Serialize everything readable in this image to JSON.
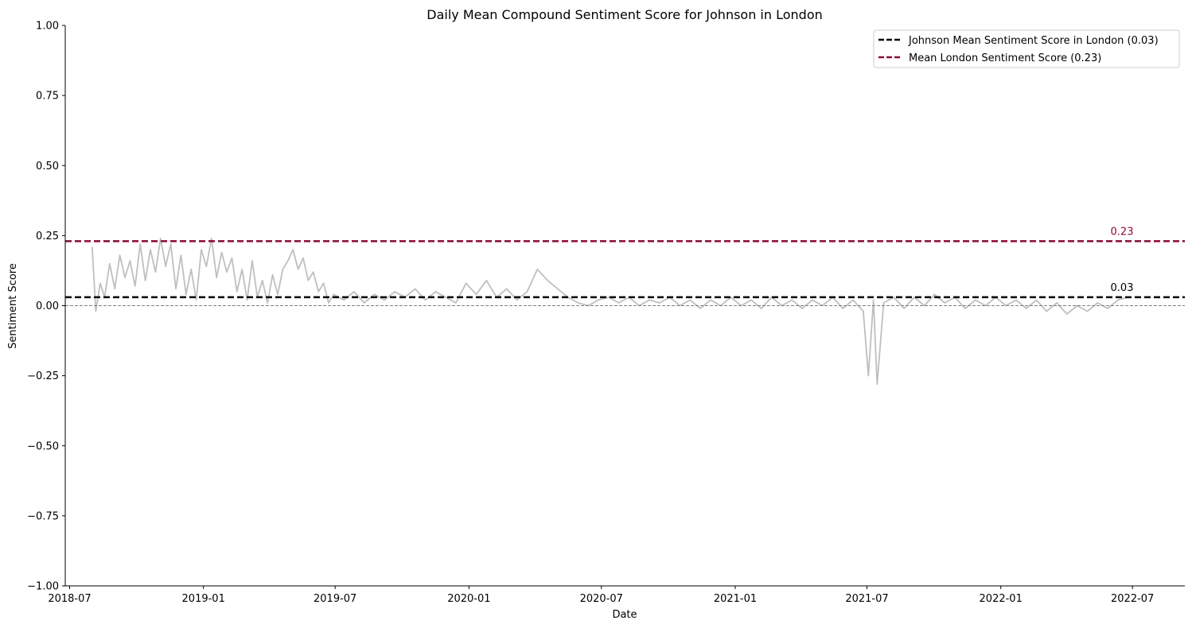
{
  "chart_data": {
    "type": "line",
    "title": "Daily Mean Compound Sentiment Score for Johnson in London",
    "xlabel": "Date",
    "ylabel": "Sentiment Score",
    "xlim": [
      "2018-06-25",
      "2022-09-11"
    ],
    "ylim": [
      -1.0,
      1.0
    ],
    "x_ticks": [
      "2018-07-01",
      "2019-01-01",
      "2019-07-01",
      "2020-01-01",
      "2020-07-01",
      "2021-01-01",
      "2021-07-01",
      "2022-01-01",
      "2022-07-01"
    ],
    "x_tick_labels": [
      "2018-07",
      "2019-01",
      "2019-07",
      "2020-01",
      "2020-07",
      "2021-01",
      "2021-07",
      "2022-01",
      "2022-07"
    ],
    "y_ticks": [
      -1.0,
      -0.75,
      -0.5,
      -0.25,
      0.0,
      0.25,
      0.5,
      0.75,
      1.0
    ],
    "y_tick_labels": [
      "−1.00",
      "−0.75",
      "−0.50",
      "−0.25",
      "0.00",
      "0.25",
      "0.50",
      "0.75",
      "1.00"
    ],
    "grid": false,
    "legend_position": "top-right",
    "series": [
      {
        "color": "#bfbfbf",
        "points": [
          [
            "2018-08-01",
            0.21
          ],
          [
            "2018-08-06",
            -0.02
          ],
          [
            "2018-08-12",
            0.08
          ],
          [
            "2018-08-18",
            0.03
          ],
          [
            "2018-08-25",
            0.15
          ],
          [
            "2018-09-01",
            0.06
          ],
          [
            "2018-09-08",
            0.18
          ],
          [
            "2018-09-15",
            0.1
          ],
          [
            "2018-09-22",
            0.16
          ],
          [
            "2018-09-29",
            0.07
          ],
          [
            "2018-10-06",
            0.22
          ],
          [
            "2018-10-13",
            0.09
          ],
          [
            "2018-10-20",
            0.2
          ],
          [
            "2018-10-27",
            0.12
          ],
          [
            "2018-11-03",
            0.24
          ],
          [
            "2018-11-10",
            0.14
          ],
          [
            "2018-11-17",
            0.22
          ],
          [
            "2018-11-24",
            0.06
          ],
          [
            "2018-12-01",
            0.18
          ],
          [
            "2018-12-08",
            0.04
          ],
          [
            "2018-12-15",
            0.13
          ],
          [
            "2018-12-22",
            0.02
          ],
          [
            "2018-12-29",
            0.2
          ],
          [
            "2019-01-05",
            0.14
          ],
          [
            "2019-01-12",
            0.24
          ],
          [
            "2019-01-19",
            0.1
          ],
          [
            "2019-01-26",
            0.19
          ],
          [
            "2019-02-02",
            0.12
          ],
          [
            "2019-02-09",
            0.17
          ],
          [
            "2019-02-16",
            0.05
          ],
          [
            "2019-02-23",
            0.13
          ],
          [
            "2019-03-02",
            0.02
          ],
          [
            "2019-03-09",
            0.16
          ],
          [
            "2019-03-16",
            0.03
          ],
          [
            "2019-03-23",
            0.09
          ],
          [
            "2019-03-30",
            0.01
          ],
          [
            "2019-04-06",
            0.11
          ],
          [
            "2019-04-13",
            0.04
          ],
          [
            "2019-04-20",
            0.13
          ],
          [
            "2019-04-27",
            0.16
          ],
          [
            "2019-05-04",
            0.2
          ],
          [
            "2019-05-11",
            0.13
          ],
          [
            "2019-05-18",
            0.17
          ],
          [
            "2019-05-25",
            0.09
          ],
          [
            "2019-06-01",
            0.12
          ],
          [
            "2019-06-08",
            0.05
          ],
          [
            "2019-06-15",
            0.08
          ],
          [
            "2019-06-22",
            0.01
          ],
          [
            "2019-06-29",
            0.04
          ],
          [
            "2019-07-13",
            0.02
          ],
          [
            "2019-07-27",
            0.05
          ],
          [
            "2019-08-10",
            0.01
          ],
          [
            "2019-08-24",
            0.04
          ],
          [
            "2019-09-07",
            0.02
          ],
          [
            "2019-09-21",
            0.05
          ],
          [
            "2019-10-05",
            0.03
          ],
          [
            "2019-10-19",
            0.06
          ],
          [
            "2019-11-02",
            0.02
          ],
          [
            "2019-11-16",
            0.05
          ],
          [
            "2019-11-30",
            0.03
          ],
          [
            "2019-12-14",
            0.01
          ],
          [
            "2019-12-28",
            0.08
          ],
          [
            "2020-01-11",
            0.04
          ],
          [
            "2020-01-25",
            0.09
          ],
          [
            "2020-02-08",
            0.03
          ],
          [
            "2020-02-22",
            0.06
          ],
          [
            "2020-03-07",
            0.02
          ],
          [
            "2020-03-21",
            0.05
          ],
          [
            "2020-04-04",
            0.13
          ],
          [
            "2020-04-18",
            0.09
          ],
          [
            "2020-05-02",
            0.06
          ],
          [
            "2020-05-16",
            0.03
          ],
          [
            "2020-05-30",
            0.01
          ],
          [
            "2020-06-13",
            0.0
          ],
          [
            "2020-06-27",
            0.02
          ],
          [
            "2020-07-11",
            0.03
          ],
          [
            "2020-07-25",
            0.01
          ],
          [
            "2020-08-08",
            0.03
          ],
          [
            "2020-08-22",
            0.0
          ],
          [
            "2020-09-05",
            0.02
          ],
          [
            "2020-09-19",
            0.01
          ],
          [
            "2020-10-03",
            0.03
          ],
          [
            "2020-10-17",
            0.0
          ],
          [
            "2020-10-31",
            0.02
          ],
          [
            "2020-11-14",
            -0.01
          ],
          [
            "2020-11-28",
            0.02
          ],
          [
            "2020-12-12",
            0.0
          ],
          [
            "2020-12-26",
            0.03
          ],
          [
            "2021-01-09",
            0.0
          ],
          [
            "2021-01-23",
            0.02
          ],
          [
            "2021-02-06",
            -0.01
          ],
          [
            "2021-02-20",
            0.03
          ],
          [
            "2021-03-06",
            0.0
          ],
          [
            "2021-03-20",
            0.02
          ],
          [
            "2021-04-03",
            -0.01
          ],
          [
            "2021-04-17",
            0.02
          ],
          [
            "2021-05-01",
            0.0
          ],
          [
            "2021-05-15",
            0.03
          ],
          [
            "2021-05-29",
            -0.01
          ],
          [
            "2021-06-12",
            0.02
          ],
          [
            "2021-06-26",
            -0.02
          ],
          [
            "2021-07-03",
            -0.25
          ],
          [
            "2021-07-10",
            0.02
          ],
          [
            "2021-07-15",
            -0.28
          ],
          [
            "2021-07-24",
            0.01
          ],
          [
            "2021-08-07",
            0.03
          ],
          [
            "2021-08-21",
            -0.01
          ],
          [
            "2021-09-04",
            0.03
          ],
          [
            "2021-09-18",
            0.0
          ],
          [
            "2021-10-02",
            0.04
          ],
          [
            "2021-10-16",
            0.01
          ],
          [
            "2021-10-30",
            0.03
          ],
          [
            "2021-11-13",
            -0.01
          ],
          [
            "2021-11-27",
            0.02
          ],
          [
            "2021-12-11",
            0.0
          ],
          [
            "2021-12-25",
            0.03
          ],
          [
            "2022-01-08",
            0.0
          ],
          [
            "2022-01-22",
            0.02
          ],
          [
            "2022-02-05",
            -0.01
          ],
          [
            "2022-02-19",
            0.02
          ],
          [
            "2022-03-05",
            -0.02
          ],
          [
            "2022-03-19",
            0.01
          ],
          [
            "2022-04-02",
            -0.03
          ],
          [
            "2022-04-16",
            0.0
          ],
          [
            "2022-04-30",
            -0.02
          ],
          [
            "2022-05-14",
            0.01
          ],
          [
            "2022-05-28",
            -0.01
          ],
          [
            "2022-06-11",
            0.02
          ],
          [
            "2022-06-25",
            0.03
          ]
        ]
      }
    ],
    "reference_lines": [
      {
        "name": "Johnson Mean Sentiment Score in London (0.03)",
        "value": 0.03,
        "color": "#000000",
        "style": "dashed",
        "label": "0.03"
      },
      {
        "name": "Mean London Sentiment Score (0.23)",
        "value": 0.23,
        "color": "#8b0a32",
        "style": "dashed",
        "label": "0.23"
      },
      {
        "value": 0.0,
        "color": "#808080",
        "style": "dashed-thin"
      }
    ],
    "legend": [
      {
        "label": "Johnson Mean Sentiment Score in London (0.03)",
        "color": "#000000"
      },
      {
        "label": "Mean London Sentiment Score (0.23)",
        "color": "#8b0a32"
      }
    ]
  }
}
